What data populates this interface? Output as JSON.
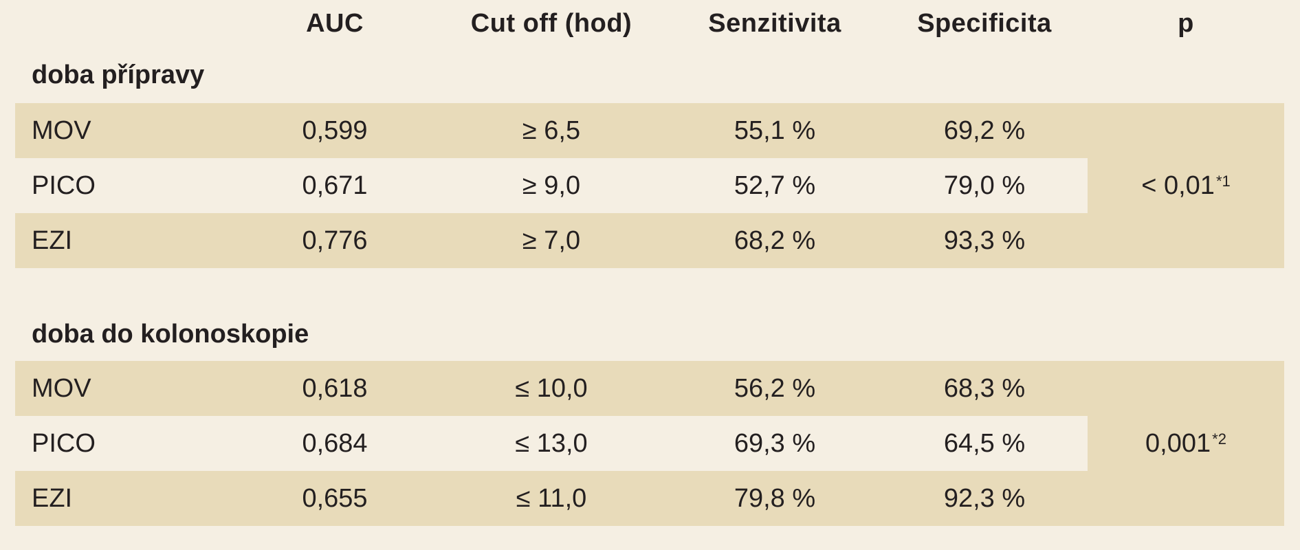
{
  "table": {
    "columns": {
      "label": "",
      "auc": "AUC",
      "cutoff": "Cut off (hod)",
      "sensitivity": "Senzitivita",
      "specificity": "Specificita",
      "p": "p"
    },
    "sections": [
      {
        "title": "doba přípravy",
        "rows": [
          {
            "name": "MOV",
            "auc": "0,599",
            "cutoff": "≥ 6,5",
            "sensitivity": "55,1 %",
            "specificity": "69,2 %"
          },
          {
            "name": "PICO",
            "auc": "0,671",
            "cutoff": "≥ 9,0",
            "sensitivity": "52,7 %",
            "specificity": "79,0 %"
          },
          {
            "name": "EZI",
            "auc": "0,776",
            "cutoff": "≥ 7,0",
            "sensitivity": "68,2 %",
            "specificity": "93,3 %"
          }
        ],
        "p_value": "< 0,01",
        "p_note": "*1"
      },
      {
        "title": "doba do kolonoskopie",
        "rows": [
          {
            "name": "MOV",
            "auc": "0,618",
            "cutoff": "≤ 10,0",
            "sensitivity": "56,2 %",
            "specificity": "68,3 %"
          },
          {
            "name": "PICO",
            "auc": "0,684",
            "cutoff": "≤ 13,0",
            "sensitivity": "69,3 %",
            "specificity": "64,5 %"
          },
          {
            "name": "EZI",
            "auc": "0,655",
            "cutoff": "≤ 11,0",
            "sensitivity": "79,8 %",
            "specificity": "92,3 %"
          }
        ],
        "p_value": "0,001",
        "p_note": "*2"
      }
    ],
    "colors": {
      "page_background": "#f5efe3",
      "row_shade": "#e8dbba",
      "text": "#231f20"
    }
  }
}
